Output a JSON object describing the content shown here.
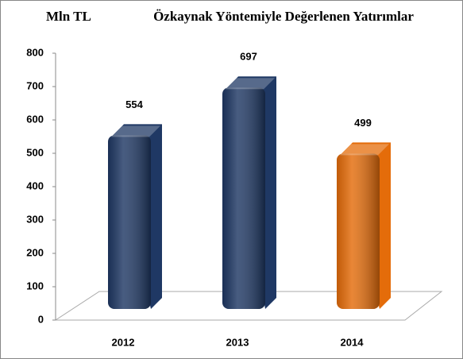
{
  "chart_data": {
    "type": "bar3d",
    "title": "Özkaynak Yöntemiyle Değerlenen Yatırımlar",
    "unit_label": "Mln TL",
    "categories": [
      "2012",
      "2013",
      "2014"
    ],
    "values": [
      554,
      697,
      499
    ],
    "colors": [
      "#1f3864",
      "#1f3864",
      "#e46c0a"
    ],
    "ylim": [
      0,
      800
    ],
    "yticks": [
      0,
      100,
      200,
      300,
      400,
      500,
      600,
      700,
      800
    ],
    "grid": false
  }
}
